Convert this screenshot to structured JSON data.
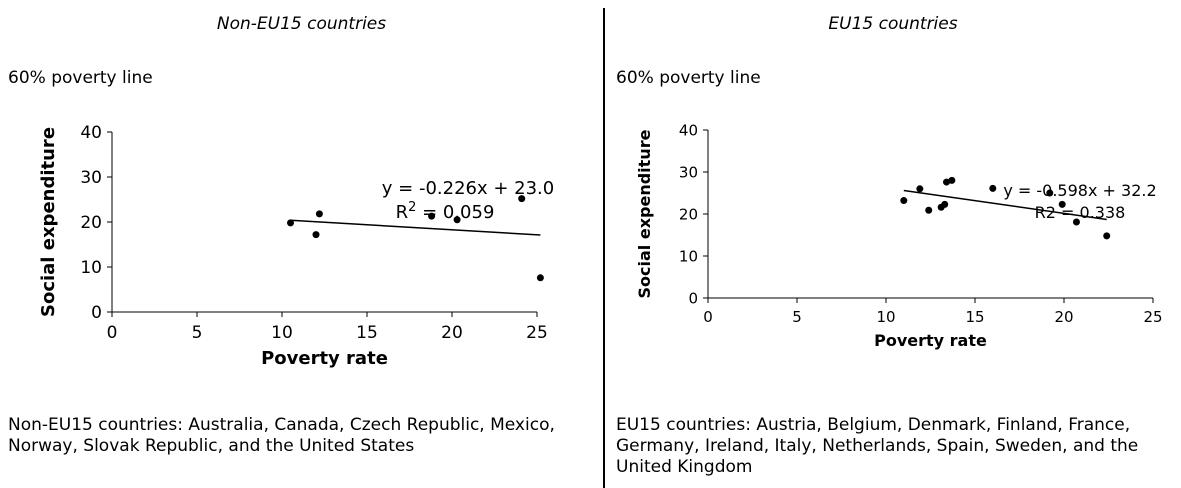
{
  "panels": [
    {
      "title": "Non-EU15 countries",
      "subtitle": "60% poverty line",
      "equation": "y = -0.226x + 23.0",
      "r2_label": "R",
      "r2_sup": "2",
      "r2_value": " = 0.059",
      "note": "Non-EU15 countries: Australia, Canada, Czech Republic, Mexico, Norway, Slovak Republic, and the United States"
    },
    {
      "title": "EU15 countries",
      "subtitle": "60% poverty line",
      "equation": "y = -0.598x + 32.2",
      "r2_label": "R2 = 0.338",
      "note": "EU15 countries: Austria, Belgium, Denmark, Finland, France, Germany, Ireland, Italy, Netherlands, Spain, Sweden, and the United Kingdom"
    }
  ],
  "chart_data": [
    {
      "type": "scatter",
      "xlabel": "Poverty rate",
      "ylabel": "Social expenditure",
      "xlim": [
        0,
        25
      ],
      "ylim": [
        0,
        40
      ],
      "xticks": [
        0,
        5,
        10,
        15,
        20,
        25
      ],
      "yticks": [
        0,
        10,
        20,
        30,
        40
      ],
      "points": [
        {
          "x": 10.5,
          "y": 19.8
        },
        {
          "x": 12.0,
          "y": 17.2
        },
        {
          "x": 12.2,
          "y": 21.8
        },
        {
          "x": 18.8,
          "y": 21.3
        },
        {
          "x": 20.3,
          "y": 20.5
        },
        {
          "x": 24.1,
          "y": 25.2
        },
        {
          "x": 25.2,
          "y": 7.6
        }
      ],
      "trendline": {
        "x": [
          10.5,
          25.2
        ],
        "y": [
          20.4,
          17.1
        ]
      }
    },
    {
      "type": "scatter",
      "xlabel": "Poverty rate",
      "ylabel": "Social expenditure",
      "xlim": [
        0,
        25
      ],
      "ylim": [
        0,
        40
      ],
      "xticks": [
        0,
        5,
        10,
        15,
        20,
        25
      ],
      "yticks": [
        0,
        10,
        20,
        30,
        40
      ],
      "points": [
        {
          "x": 11.0,
          "y": 23.2
        },
        {
          "x": 11.9,
          "y": 26.0
        },
        {
          "x": 12.4,
          "y": 20.9
        },
        {
          "x": 13.1,
          "y": 21.6
        },
        {
          "x": 13.3,
          "y": 22.3
        },
        {
          "x": 13.4,
          "y": 27.6
        },
        {
          "x": 13.7,
          "y": 28.0
        },
        {
          "x": 16.0,
          "y": 26.1
        },
        {
          "x": 19.2,
          "y": 25.0
        },
        {
          "x": 19.9,
          "y": 22.3
        },
        {
          "x": 20.7,
          "y": 18.1
        },
        {
          "x": 22.4,
          "y": 14.8
        }
      ],
      "trendline": {
        "x": [
          11.0,
          22.4
        ],
        "y": [
          25.6,
          18.7
        ]
      }
    }
  ]
}
